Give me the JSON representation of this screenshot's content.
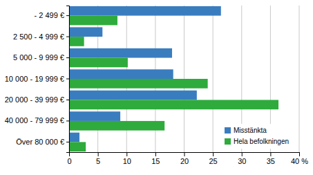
{
  "chart_data": {
    "type": "bar",
    "orientation": "horizontal",
    "categories": [
      "- 2 499 €",
      "2 500 - 4 999 €",
      "5 000 - 9 999 €",
      "10 000 - 19 999 €",
      "20 000 - 39 999 €",
      "40 000 - 79 999 €",
      "Över 80 000 €"
    ],
    "series": [
      {
        "name": "Misstänkta",
        "color": "#3a7dbf",
        "values": [
          26.4,
          5.8,
          17.9,
          18.1,
          22.2,
          8.9,
          1.8
        ]
      },
      {
        "name": "Hela befolkningen",
        "color": "#2eab3c",
        "values": [
          8.4,
          2.6,
          10.2,
          24.1,
          36.4,
          16.6,
          2.9
        ]
      }
    ],
    "xlim": [
      0,
      40
    ],
    "xticks": [
      0,
      5,
      10,
      15,
      20,
      25,
      30,
      35,
      {
        "value": 40,
        "label": "40 %"
      }
    ],
    "grid": true,
    "legend": "bottom-right"
  }
}
